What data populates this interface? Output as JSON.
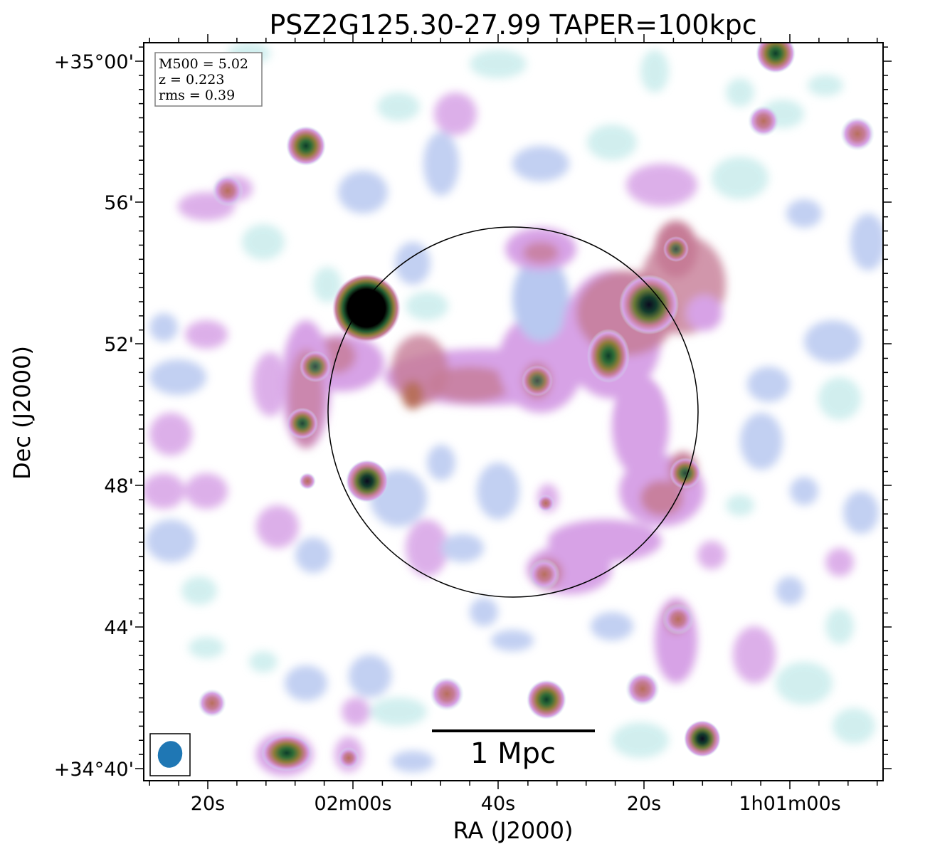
{
  "figure": {
    "title": "PSZ2G125.30-27.99 TAPER=100kpc",
    "xlabel": "RA (J2000)",
    "ylabel": "Dec (J2000)",
    "x_ticks": [
      "20s",
      "02m00s",
      "40s",
      "20s",
      "1h01m00s"
    ],
    "y_ticks": [
      "+35°00'",
      "56'",
      "52'",
      "48'",
      "44'",
      "+34°40'"
    ],
    "info": {
      "m500": "M500 = 5.02",
      "z": "z = 0.223",
      "rms": "rms = 0.39"
    },
    "scalebar": {
      "label": "1 Mpc"
    },
    "colors": {
      "beam": "#1f77b4",
      "frame": "#000000",
      "info_border": "#808080",
      "colormap": [
        "#ffffff",
        "#c9ecec",
        "#b8c8f0",
        "#d7a2e6",
        "#c67c96",
        "#8f7c3a",
        "#1f5a30",
        "#000000"
      ]
    }
  }
}
